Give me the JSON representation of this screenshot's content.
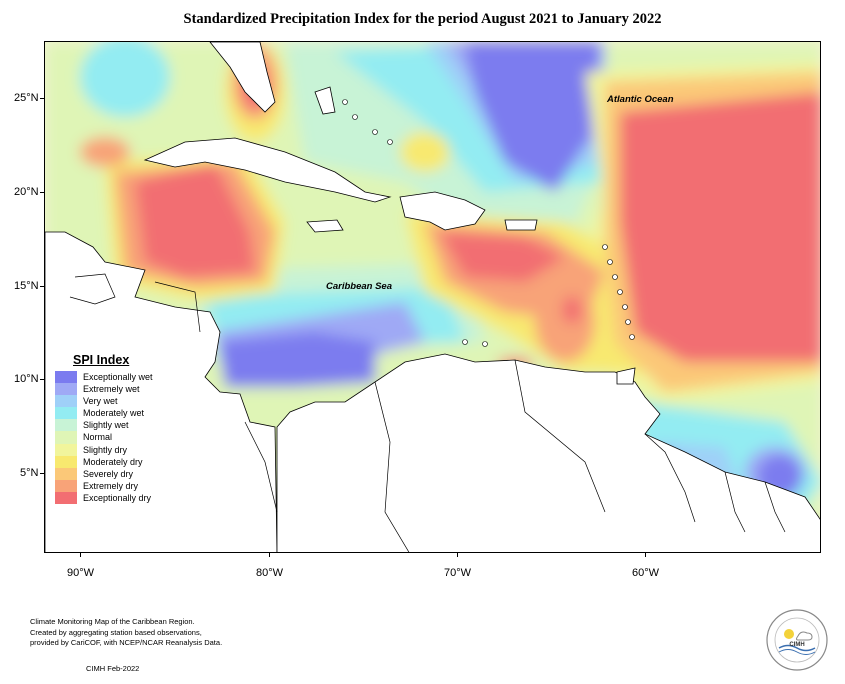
{
  "title": "Standardized Precipitation Index for the period August 2021 to January 2022",
  "map": {
    "lat_labels": [
      "25°N",
      "20°N",
      "15°N",
      "10°N",
      "5°N"
    ],
    "lon_labels": [
      "90°W",
      "80°W",
      "70°W",
      "60°W"
    ],
    "ocean_labels": {
      "atlantic": "Atlantic Ocean",
      "caribbean": "Caribbean Sea"
    }
  },
  "legend": {
    "title": "SPI Index",
    "items": [
      {
        "label": "Exceptionally wet",
        "color": "#7b7bef"
      },
      {
        "label": "Extremely wet",
        "color": "#9fa9f5"
      },
      {
        "label": "Very wet",
        "color": "#9fd0f8"
      },
      {
        "label": "Moderately wet",
        "color": "#93ecf2"
      },
      {
        "label": "Slightly wet",
        "color": "#c8f3d6"
      },
      {
        "label": "Normal",
        "color": "#dff5b6"
      },
      {
        "label": "Slightly dry",
        "color": "#f1f59c"
      },
      {
        "label": "Moderately dry",
        "color": "#f8e96f"
      },
      {
        "label": "Severely dry",
        "color": "#fbc878"
      },
      {
        "label": "Extremely dry",
        "color": "#f8a378"
      },
      {
        "label": "Exceptionally dry",
        "color": "#f26e72"
      }
    ]
  },
  "footer": {
    "line1": "Climate Monitoring Map of the Caribbean Region.",
    "line2": "Created by aggregating station based observations,",
    "line3": "provided by CariCOF, with NCEP/NCAR Reanalysis Data.",
    "code": "CIMH Feb-2022",
    "logo_text": "CIMH"
  }
}
